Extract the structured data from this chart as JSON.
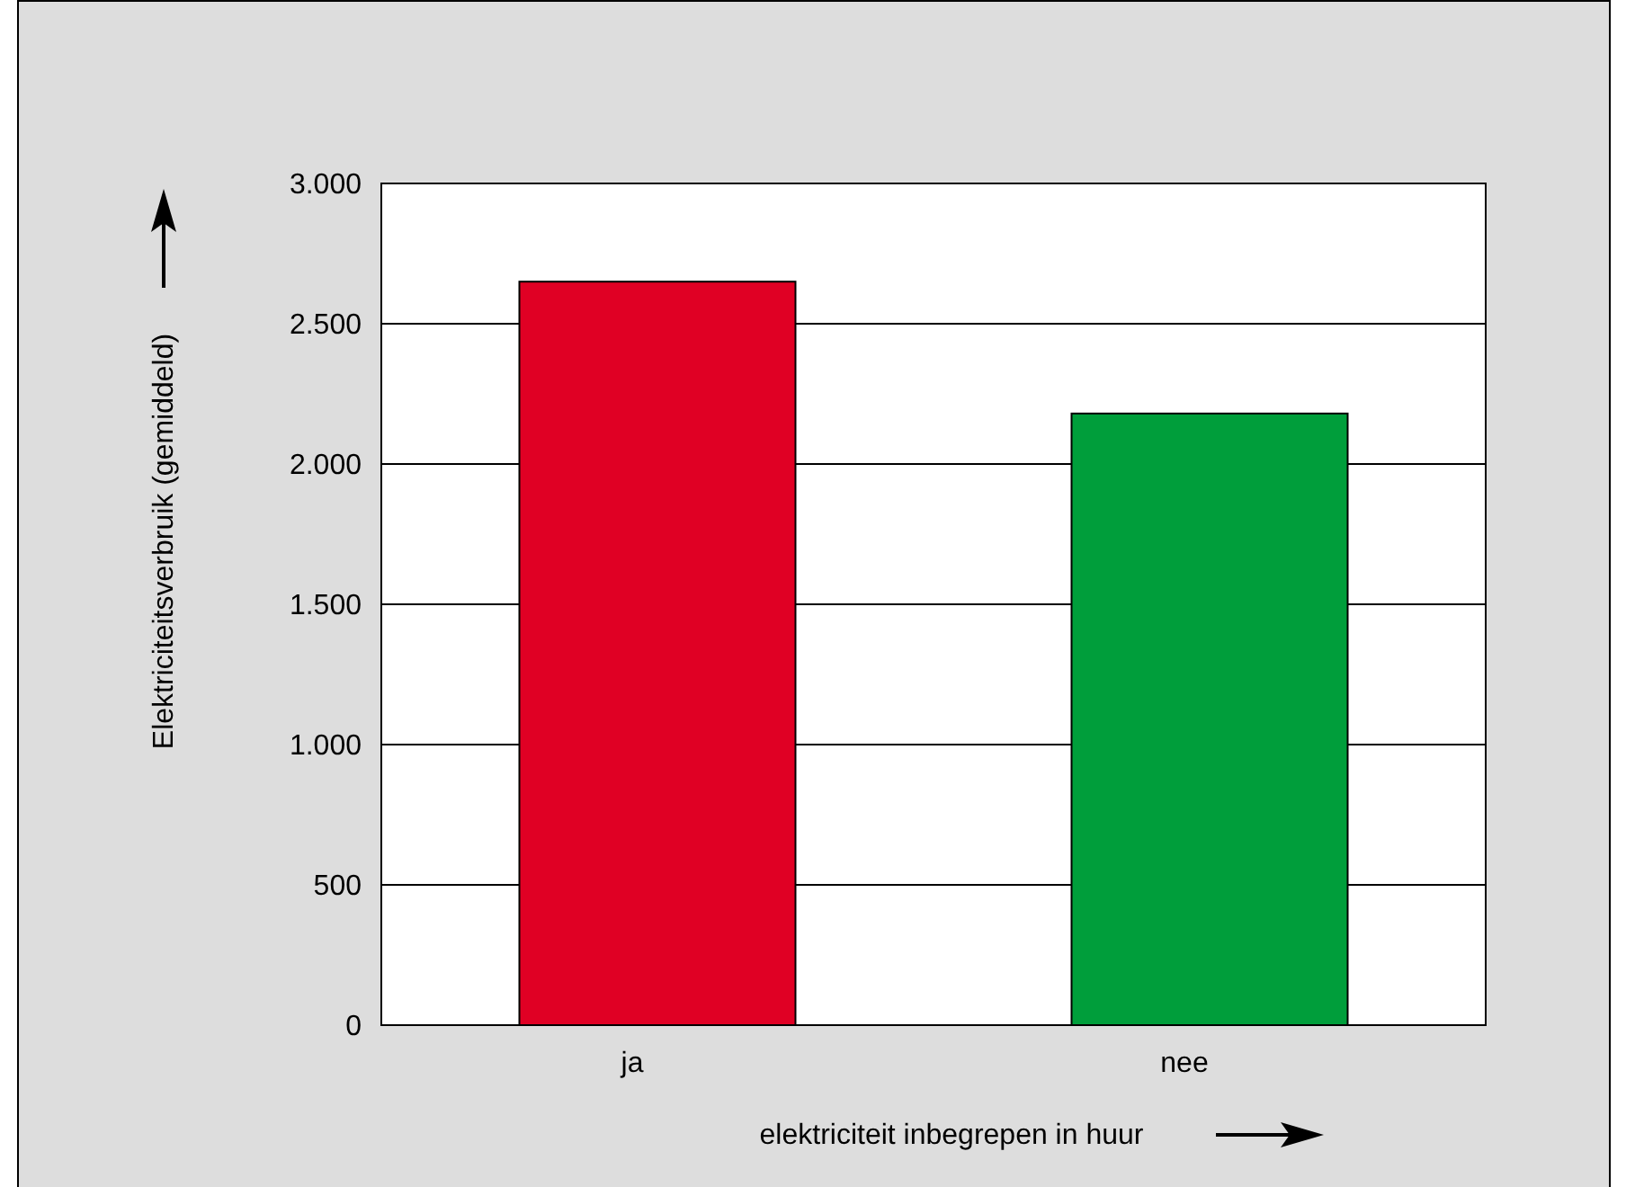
{
  "chart_data": {
    "type": "bar",
    "xlabel": "elektriciteit inbegrepen in huur",
    "ylabel": "Elektriciteitsverbruik (gemiddeld)",
    "categories": [
      "ja",
      "nee"
    ],
    "values": [
      2650,
      2180
    ],
    "colors": [
      "#e00024",
      "#009e3b"
    ],
    "ylim": [
      0,
      3000
    ],
    "yticks": [
      {
        "value": 0,
        "label": "0"
      },
      {
        "value": 500,
        "label": "500"
      },
      {
        "value": 1000,
        "label": "1.000"
      },
      {
        "value": 1500,
        "label": "1.500"
      },
      {
        "value": 2000,
        "label": "2.000"
      },
      {
        "value": 2500,
        "label": "2.500"
      },
      {
        "value": 3000,
        "label": "3.000"
      }
    ],
    "grid": "y"
  }
}
